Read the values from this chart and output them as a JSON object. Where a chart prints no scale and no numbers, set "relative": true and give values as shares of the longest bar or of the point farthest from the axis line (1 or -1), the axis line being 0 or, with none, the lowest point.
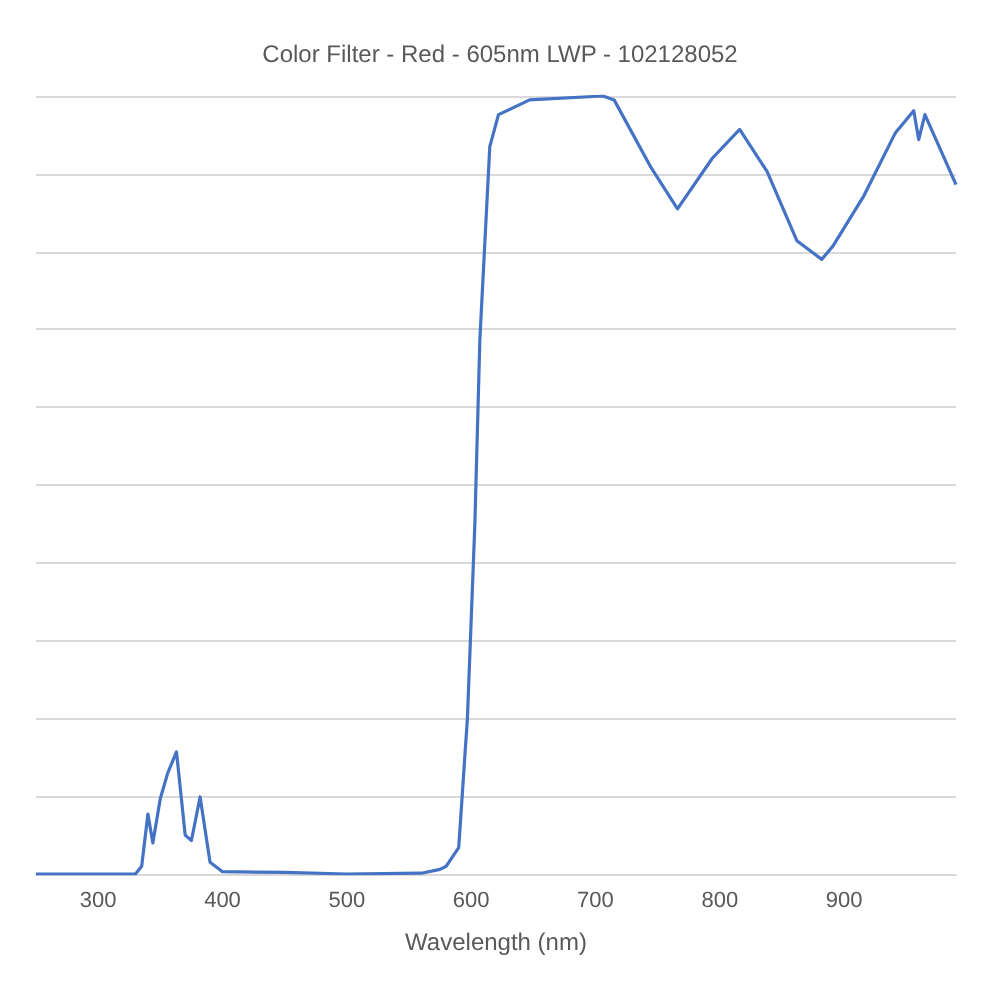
{
  "chart_data": {
    "type": "line",
    "title": "Color Filter - Red - 605nm LWP - 102128052",
    "xlabel": "Wavelength (nm)",
    "relative": true,
    "grid": "y",
    "marker": "none",
    "line_style": "solid",
    "xlim": [
      250,
      990
    ],
    "xticks": [
      300,
      400,
      500,
      600,
      700,
      800,
      900
    ],
    "series": [
      {
        "color": "#4472c4",
        "x": [
          250,
          330,
          335,
          340,
          344,
          350,
          356,
          363,
          370,
          375,
          382,
          390,
          400,
          450,
          500,
          560,
          575,
          580,
          590,
          597,
          603,
          607,
          615,
          622,
          647,
          706,
          715,
          744,
          766,
          794,
          816,
          838,
          862,
          882,
          891,
          916,
          941,
          956,
          960,
          965,
          975,
          990
        ],
        "values": [
          0,
          0,
          0.01,
          0.077,
          0.04,
          0.097,
          0.13,
          0.157,
          0.05,
          0.043,
          0.099,
          0.015,
          0.003,
          0.002,
          0,
          0.001,
          0.006,
          0.01,
          0.034,
          0.2,
          0.45,
          0.686,
          0.935,
          0.976,
          0.995,
          1,
          0.995,
          0.91,
          0.855,
          0.92,
          0.957,
          0.903,
          0.814,
          0.79,
          0.807,
          0.872,
          0.952,
          0.981,
          0.944,
          0.976,
          0.94,
          0.886
        ]
      }
    ]
  }
}
